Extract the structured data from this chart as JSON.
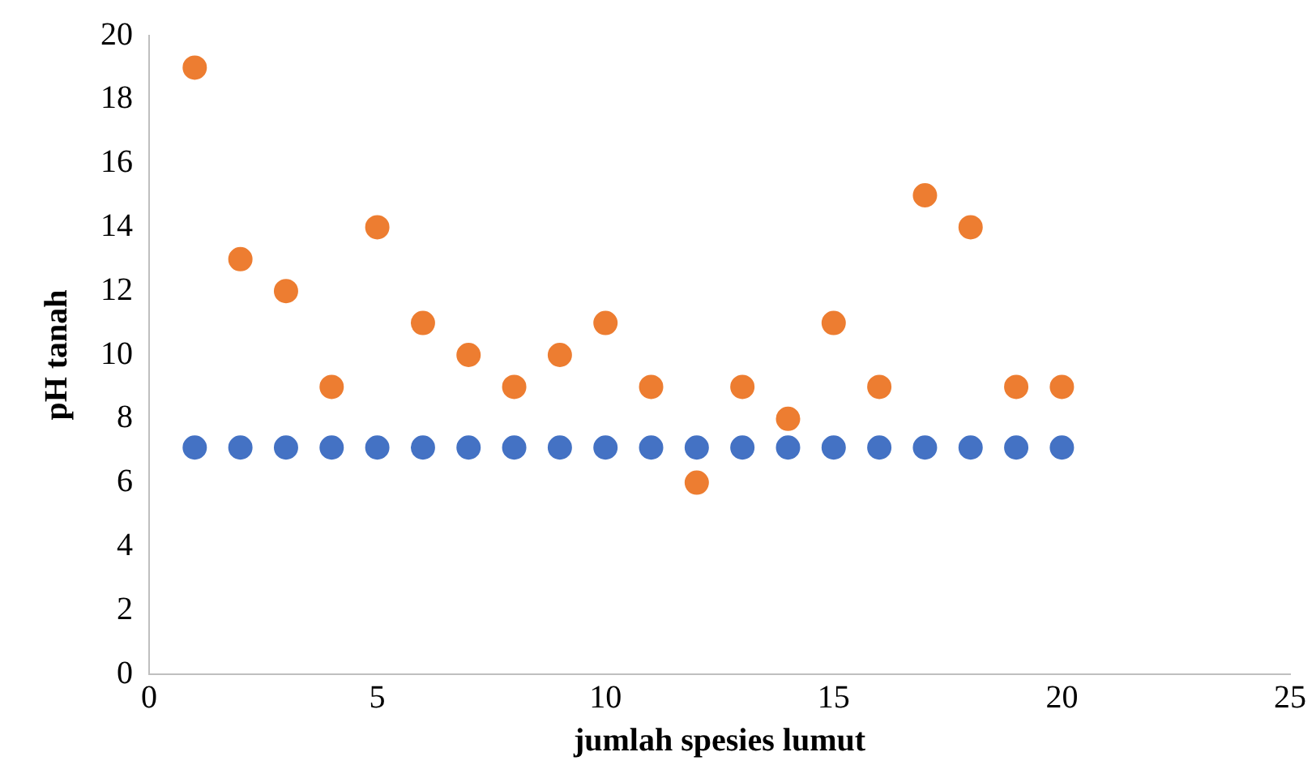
{
  "chart_data": {
    "type": "scatter",
    "xlabel": "jumlah spesies lumut",
    "ylabel": "pH tanah",
    "x": [
      1,
      2,
      3,
      4,
      5,
      6,
      7,
      8,
      9,
      10,
      11,
      12,
      13,
      14,
      15,
      16,
      17,
      18,
      19,
      20
    ],
    "series": [
      {
        "color": "#4472c4",
        "values": [
          7.1,
          7.1,
          7.1,
          7.1,
          7.1,
          7.1,
          7.1,
          7.1,
          7.1,
          7.1,
          7.1,
          7.1,
          7.1,
          7.1,
          7.1,
          7.1,
          7.1,
          7.1,
          7.1,
          7.1
        ]
      },
      {
        "color": "#ed7d31",
        "values": [
          19,
          13,
          12,
          9,
          14,
          11,
          10,
          9,
          10,
          11,
          9,
          6,
          9,
          8,
          11,
          9,
          15,
          14,
          9,
          9
        ]
      }
    ],
    "xlim": [
      0,
      25
    ],
    "xticks": [
      0,
      5,
      10,
      15,
      20,
      25
    ],
    "ylim": [
      0,
      20
    ],
    "yticks": [
      0,
      2,
      4,
      6,
      8,
      10,
      12,
      14,
      16,
      18,
      20
    ],
    "grid": false,
    "legend": false,
    "marker": "circle"
  }
}
